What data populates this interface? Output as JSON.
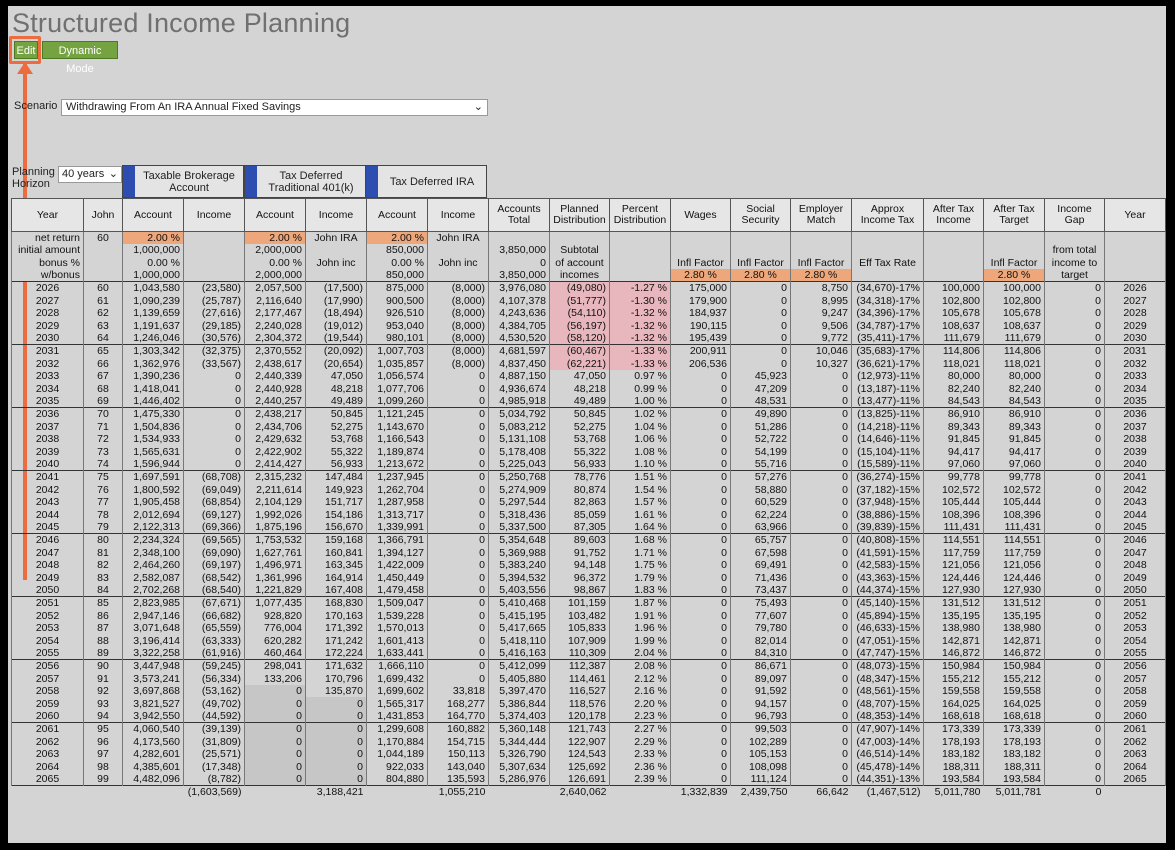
{
  "title": "Structured Income Planning",
  "buttons": {
    "edit": "Edit",
    "dynamic": "Dynamic Mode"
  },
  "scenario": {
    "label": "Scenario",
    "value": "Withdrawing From An IRA Annual Fixed Savings"
  },
  "horizon": {
    "label": "Planning Horizon",
    "value": "40 years"
  },
  "accounts": [
    "Taxable Brokerage Account",
    "Tax Deferred Traditional 401(k)",
    "Tax Deferred IRA"
  ],
  "columns": [
    "Year",
    "John",
    "Account",
    "Income",
    "Account",
    "Income",
    "Account",
    "Income",
    "Accounts Total",
    "Planned Distribution",
    "Percent Distribution",
    "Wages",
    "Social Security",
    "Employer Match",
    "Approx Income Tax",
    "After Tax Income",
    "After Tax Target",
    "Income Gap",
    "Year"
  ],
  "setup": {
    "r1": [
      "net return",
      "60",
      "2.00 %",
      "",
      "2.00 %",
      "John IRA",
      "2.00 %",
      "John IRA",
      "",
      "",
      "",
      "",
      "",
      "",
      "",
      "",
      "",
      "",
      ""
    ],
    "r2": [
      "initial amount",
      "",
      "1,000,000",
      "",
      "2,000,000",
      "",
      "850,000",
      "",
      "3,850,000",
      "Subtotal",
      "",
      "",
      "",
      "",
      "",
      "",
      "",
      "from total",
      ""
    ],
    "r3": [
      "bonus %",
      "",
      "0.00 %",
      "",
      "0.00 %",
      "John inc",
      "0.00 %",
      "John inc",
      "0",
      "of account",
      "",
      "Infl Factor",
      "Infl Factor",
      "Infl Factor",
      "Eff Tax Rate",
      "",
      "Infl Factor",
      "income to",
      ""
    ],
    "r4": [
      "w/bonus",
      "",
      "1,000,000",
      "",
      "2,000,000",
      "",
      "850,000",
      "",
      "3,850,000",
      "incomes",
      "",
      "2.80 %",
      "2.80 %",
      "2.80 %",
      "",
      "",
      "2.80 %",
      "target",
      ""
    ]
  },
  "rows": [
    [
      "2026",
      "60",
      "1,043,580",
      "(23,580)",
      "2,057,500",
      "(17,500)",
      "875,000",
      "(8,000)",
      "3,976,080",
      "(49,080)",
      "-1.27 %",
      "175,000",
      "0",
      "8,750",
      "(34,670)-17%",
      "100,000",
      "100,000",
      "0",
      "2026"
    ],
    [
      "2027",
      "61",
      "1,090,239",
      "(25,787)",
      "2,116,640",
      "(17,990)",
      "900,500",
      "(8,000)",
      "4,107,378",
      "(51,777)",
      "-1.30 %",
      "179,900",
      "0",
      "8,995",
      "(34,318)-17%",
      "102,800",
      "102,800",
      "0",
      "2027"
    ],
    [
      "2028",
      "62",
      "1,139,659",
      "(27,616)",
      "2,177,467",
      "(18,494)",
      "926,510",
      "(8,000)",
      "4,243,636",
      "(54,110)",
      "-1.32 %",
      "184,937",
      "0",
      "9,247",
      "(34,396)-17%",
      "105,678",
      "105,678",
      "0",
      "2028"
    ],
    [
      "2029",
      "63",
      "1,191,637",
      "(29,185)",
      "2,240,028",
      "(19,012)",
      "953,040",
      "(8,000)",
      "4,384,705",
      "(56,197)",
      "-1.32 %",
      "190,115",
      "0",
      "9,506",
      "(34,787)-17%",
      "108,637",
      "108,637",
      "0",
      "2029"
    ],
    [
      "2030",
      "64",
      "1,246,046",
      "(30,576)",
      "2,304,372",
      "(19,544)",
      "980,101",
      "(8,000)",
      "4,530,520",
      "(58,120)",
      "-1.32 %",
      "195,439",
      "0",
      "9,772",
      "(35,411)-17%",
      "111,679",
      "111,679",
      "0",
      "2030"
    ],
    [
      "2031",
      "65",
      "1,303,342",
      "(32,375)",
      "2,370,552",
      "(20,092)",
      "1,007,703",
      "(8,000)",
      "4,681,597",
      "(60,467)",
      "-1.33 %",
      "200,911",
      "0",
      "10,046",
      "(35,683)-17%",
      "114,806",
      "114,806",
      "0",
      "2031"
    ],
    [
      "2032",
      "66",
      "1,362,976",
      "(33,567)",
      "2,438,617",
      "(20,654)",
      "1,035,857",
      "(8,000)",
      "4,837,450",
      "(62,221)",
      "-1.33 %",
      "206,536",
      "0",
      "10,327",
      "(36,621)-17%",
      "118,021",
      "118,021",
      "0",
      "2032"
    ],
    [
      "2033",
      "67",
      "1,390,236",
      "0",
      "2,440,339",
      "47,050",
      "1,056,574",
      "0",
      "4,887,150",
      "47,050",
      "0.97 %",
      "0",
      "45,923",
      "0",
      "(12,973)-11%",
      "80,000",
      "80,000",
      "0",
      "2033"
    ],
    [
      "2034",
      "68",
      "1,418,041",
      "0",
      "2,440,928",
      "48,218",
      "1,077,706",
      "0",
      "4,936,674",
      "48,218",
      "0.99 %",
      "0",
      "47,209",
      "0",
      "(13,187)-11%",
      "82,240",
      "82,240",
      "0",
      "2034"
    ],
    [
      "2035",
      "69",
      "1,446,402",
      "0",
      "2,440,257",
      "49,489",
      "1,099,260",
      "0",
      "4,985,918",
      "49,489",
      "1.00 %",
      "0",
      "48,531",
      "0",
      "(13,477)-11%",
      "84,543",
      "84,543",
      "0",
      "2035"
    ],
    [
      "2036",
      "70",
      "1,475,330",
      "0",
      "2,438,217",
      "50,845",
      "1,121,245",
      "0",
      "5,034,792",
      "50,845",
      "1.02 %",
      "0",
      "49,890",
      "0",
      "(13,825)-11%",
      "86,910",
      "86,910",
      "0",
      "2036"
    ],
    [
      "2037",
      "71",
      "1,504,836",
      "0",
      "2,434,706",
      "52,275",
      "1,143,670",
      "0",
      "5,083,212",
      "52,275",
      "1.04 %",
      "0",
      "51,286",
      "0",
      "(14,218)-11%",
      "89,343",
      "89,343",
      "0",
      "2037"
    ],
    [
      "2038",
      "72",
      "1,534,933",
      "0",
      "2,429,632",
      "53,768",
      "1,166,543",
      "0",
      "5,131,108",
      "53,768",
      "1.06 %",
      "0",
      "52,722",
      "0",
      "(14,646)-11%",
      "91,845",
      "91,845",
      "0",
      "2038"
    ],
    [
      "2039",
      "73",
      "1,565,631",
      "0",
      "2,422,902",
      "55,322",
      "1,189,874",
      "0",
      "5,178,408",
      "55,322",
      "1.08 %",
      "0",
      "54,199",
      "0",
      "(15,104)-11%",
      "94,417",
      "94,417",
      "0",
      "2039"
    ],
    [
      "2040",
      "74",
      "1,596,944",
      "0",
      "2,414,427",
      "56,933",
      "1,213,672",
      "0",
      "5,225,043",
      "56,933",
      "1.10 %",
      "0",
      "55,716",
      "0",
      "(15,589)-11%",
      "97,060",
      "97,060",
      "0",
      "2040"
    ],
    [
      "2041",
      "75",
      "1,697,591",
      "(68,708)",
      "2,315,232",
      "147,484",
      "1,237,945",
      "0",
      "5,250,768",
      "78,776",
      "1.51 %",
      "0",
      "57,276",
      "0",
      "(36,274)-15%",
      "99,778",
      "99,778",
      "0",
      "2041"
    ],
    [
      "2042",
      "76",
      "1,800,592",
      "(69,049)",
      "2,211,614",
      "149,923",
      "1,262,704",
      "0",
      "5,274,909",
      "80,874",
      "1.54 %",
      "0",
      "58,880",
      "0",
      "(37,182)-15%",
      "102,572",
      "102,572",
      "0",
      "2042"
    ],
    [
      "2043",
      "77",
      "1,905,458",
      "(68,854)",
      "2,104,129",
      "151,717",
      "1,287,958",
      "0",
      "5,297,544",
      "82,863",
      "1.57 %",
      "0",
      "60,529",
      "0",
      "(37,948)-15%",
      "105,444",
      "105,444",
      "0",
      "2043"
    ],
    [
      "2044",
      "78",
      "2,012,694",
      "(69,127)",
      "1,992,026",
      "154,186",
      "1,313,717",
      "0",
      "5,318,436",
      "85,059",
      "1.61 %",
      "0",
      "62,224",
      "0",
      "(38,886)-15%",
      "108,396",
      "108,396",
      "0",
      "2044"
    ],
    [
      "2045",
      "79",
      "2,122,313",
      "(69,366)",
      "1,875,196",
      "156,670",
      "1,339,991",
      "0",
      "5,337,500",
      "87,305",
      "1.64 %",
      "0",
      "63,966",
      "0",
      "(39,839)-15%",
      "111,431",
      "111,431",
      "0",
      "2045"
    ],
    [
      "2046",
      "80",
      "2,234,324",
      "(69,565)",
      "1,753,532",
      "159,168",
      "1,366,791",
      "0",
      "5,354,648",
      "89,603",
      "1.68 %",
      "0",
      "65,757",
      "0",
      "(40,808)-15%",
      "114,551",
      "114,551",
      "0",
      "2046"
    ],
    [
      "2047",
      "81",
      "2,348,100",
      "(69,090)",
      "1,627,761",
      "160,841",
      "1,394,127",
      "0",
      "5,369,988",
      "91,752",
      "1.71 %",
      "0",
      "67,598",
      "0",
      "(41,591)-15%",
      "117,759",
      "117,759",
      "0",
      "2047"
    ],
    [
      "2048",
      "82",
      "2,464,260",
      "(69,197)",
      "1,496,971",
      "163,345",
      "1,422,009",
      "0",
      "5,383,240",
      "94,148",
      "1.75 %",
      "0",
      "69,491",
      "0",
      "(42,583)-15%",
      "121,056",
      "121,056",
      "0",
      "2048"
    ],
    [
      "2049",
      "83",
      "2,582,087",
      "(68,542)",
      "1,361,996",
      "164,914",
      "1,450,449",
      "0",
      "5,394,532",
      "96,372",
      "1.79 %",
      "0",
      "71,436",
      "0",
      "(43,363)-15%",
      "124,446",
      "124,446",
      "0",
      "2049"
    ],
    [
      "2050",
      "84",
      "2,702,268",
      "(68,540)",
      "1,221,829",
      "167,408",
      "1,479,458",
      "0",
      "5,403,556",
      "98,867",
      "1.83 %",
      "0",
      "73,437",
      "0",
      "(44,374)-15%",
      "127,930",
      "127,930",
      "0",
      "2050"
    ],
    [
      "2051",
      "85",
      "2,823,985",
      "(67,671)",
      "1,077,435",
      "168,830",
      "1,509,047",
      "0",
      "5,410,468",
      "101,159",
      "1.87 %",
      "0",
      "75,493",
      "0",
      "(45,140)-15%",
      "131,512",
      "131,512",
      "0",
      "2051"
    ],
    [
      "2052",
      "86",
      "2,947,146",
      "(66,682)",
      "928,820",
      "170,163",
      "1,539,228",
      "0",
      "5,415,195",
      "103,482",
      "1.91 %",
      "0",
      "77,607",
      "0",
      "(45,894)-15%",
      "135,195",
      "135,195",
      "0",
      "2052"
    ],
    [
      "2053",
      "87",
      "3,071,648",
      "(65,559)",
      "776,004",
      "171,392",
      "1,570,013",
      "0",
      "5,417,665",
      "105,833",
      "1.96 %",
      "0",
      "79,780",
      "0",
      "(46,633)-15%",
      "138,980",
      "138,980",
      "0",
      "2053"
    ],
    [
      "2054",
      "88",
      "3,196,414",
      "(63,333)",
      "620,282",
      "171,242",
      "1,601,413",
      "0",
      "5,418,110",
      "107,909",
      "1.99 %",
      "0",
      "82,014",
      "0",
      "(47,051)-15%",
      "142,871",
      "142,871",
      "0",
      "2054"
    ],
    [
      "2055",
      "89",
      "3,322,258",
      "(61,916)",
      "460,464",
      "172,224",
      "1,633,441",
      "0",
      "5,416,163",
      "110,309",
      "2.04 %",
      "0",
      "84,310",
      "0",
      "(47,747)-15%",
      "146,872",
      "146,872",
      "0",
      "2055"
    ],
    [
      "2056",
      "90",
      "3,447,948",
      "(59,245)",
      "298,041",
      "171,632",
      "1,666,110",
      "0",
      "5,412,099",
      "112,387",
      "2.08 %",
      "0",
      "86,671",
      "0",
      "(48,073)-15%",
      "150,984",
      "150,984",
      "0",
      "2056"
    ],
    [
      "2057",
      "91",
      "3,573,241",
      "(56,334)",
      "133,206",
      "170,796",
      "1,699,432",
      "0",
      "5,405,880",
      "114,461",
      "2.12 %",
      "0",
      "89,097",
      "0",
      "(48,347)-15%",
      "155,212",
      "155,212",
      "0",
      "2057"
    ],
    [
      "2058",
      "92",
      "3,697,868",
      "(53,162)",
      "0",
      "135,870",
      "1,699,602",
      "33,818",
      "5,397,470",
      "116,527",
      "2.16 %",
      "0",
      "91,592",
      "0",
      "(48,561)-15%",
      "159,558",
      "159,558",
      "0",
      "2058"
    ],
    [
      "2059",
      "93",
      "3,821,527",
      "(49,702)",
      "0",
      "0",
      "1,565,317",
      "168,277",
      "5,386,844",
      "118,576",
      "2.20 %",
      "0",
      "94,157",
      "0",
      "(48,707)-15%",
      "164,025",
      "164,025",
      "0",
      "2059"
    ],
    [
      "2060",
      "94",
      "3,942,550",
      "(44,592)",
      "0",
      "0",
      "1,431,853",
      "164,770",
      "5,374,403",
      "120,178",
      "2.23 %",
      "0",
      "96,793",
      "0",
      "(48,353)-14%",
      "168,618",
      "168,618",
      "0",
      "2060"
    ],
    [
      "2061",
      "95",
      "4,060,540",
      "(39,139)",
      "0",
      "0",
      "1,299,608",
      "160,882",
      "5,360,148",
      "121,743",
      "2.27 %",
      "0",
      "99,503",
      "0",
      "(47,907)-14%",
      "173,339",
      "173,339",
      "0",
      "2061"
    ],
    [
      "2062",
      "96",
      "4,173,560",
      "(31,809)",
      "0",
      "0",
      "1,170,884",
      "154,715",
      "5,344,444",
      "122,907",
      "2.29 %",
      "0",
      "102,289",
      "0",
      "(47,003)-14%",
      "178,193",
      "178,193",
      "0",
      "2062"
    ],
    [
      "2063",
      "97",
      "4,282,601",
      "(25,571)",
      "0",
      "0",
      "1,044,189",
      "150,113",
      "5,326,790",
      "124,543",
      "2.33 %",
      "0",
      "105,153",
      "0",
      "(46,514)-14%",
      "183,182",
      "183,182",
      "0",
      "2063"
    ],
    [
      "2064",
      "98",
      "4,385,601",
      "(17,348)",
      "0",
      "0",
      "922,033",
      "143,040",
      "5,307,634",
      "125,692",
      "2.36 %",
      "0",
      "108,098",
      "0",
      "(45,478)-14%",
      "188,311",
      "188,311",
      "0",
      "2064"
    ],
    [
      "2065",
      "99",
      "4,482,096",
      "(8,782)",
      "0",
      "0",
      "804,880",
      "135,593",
      "5,286,976",
      "126,691",
      "2.39 %",
      "0",
      "111,124",
      "0",
      "(44,351)-13%",
      "193,584",
      "193,584",
      "0",
      "2065"
    ]
  ],
  "totals": [
    "",
    "",
    "",
    "(1,603,569)",
    "",
    "3,188,421",
    "",
    "1,055,210",
    "",
    "2,640,062",
    "",
    "1,332,839",
    "2,439,750",
    "66,642",
    "(1,467,512)",
    "5,011,780",
    "5,011,781",
    "0",
    ""
  ]
}
